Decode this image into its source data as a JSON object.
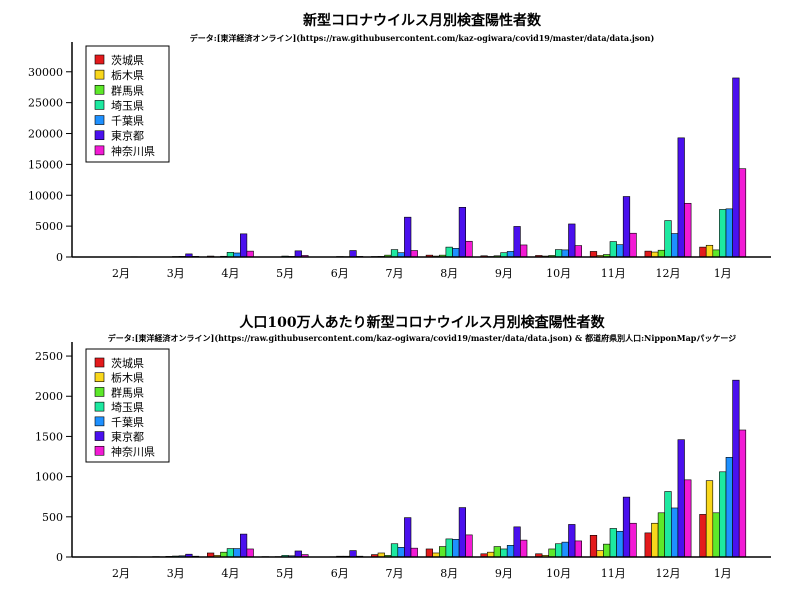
{
  "chart_data": [
    {
      "type": "bar",
      "title": "新型コロナウイルス月別検査陽性者数",
      "subtitle": "データ:[東洋経済オンライン](https://raw.githubusercontent.com/kaz-ogiwara/covid19/master/data/data.json)",
      "categories": [
        "2月",
        "3月",
        "4月",
        "5月",
        "6月",
        "7月",
        "8月",
        "9月",
        "10月",
        "11月",
        "12月",
        "1月"
      ],
      "ylim": [
        0,
        34500
      ],
      "yticks": [
        0,
        5000,
        10000,
        15000,
        20000,
        25000,
        30000
      ],
      "legend_position": "top-left",
      "grid": false,
      "series": [
        {
          "name": "茨城県",
          "color": "#e31a1c",
          "values": [
            0,
            10,
            150,
            20,
            5,
            80,
            300,
            200,
            250,
            900,
            950,
            1600
          ]
        },
        {
          "name": "栃木県",
          "color": "#f9d71c",
          "values": [
            0,
            5,
            40,
            5,
            3,
            100,
            150,
            80,
            150,
            250,
            800,
            1900
          ]
        },
        {
          "name": "群馬県",
          "color": "#5de82a",
          "values": [
            0,
            15,
            120,
            10,
            5,
            300,
            300,
            200,
            250,
            400,
            1100,
            1150
          ]
        },
        {
          "name": "埼玉県",
          "color": "#1de9a0",
          "values": [
            0,
            80,
            750,
            150,
            80,
            1200,
            1600,
            700,
            1200,
            2500,
            5900,
            7700
          ]
        },
        {
          "name": "千葉県",
          "color": "#1e90ff",
          "values": [
            0,
            100,
            650,
            100,
            60,
            700,
            1400,
            900,
            1150,
            2000,
            3800,
            7800
          ]
        },
        {
          "name": "東京都",
          "color": "#4a10ee",
          "values": [
            39,
            500,
            3750,
            1000,
            1050,
            6450,
            8050,
            4950,
            5350,
            9800,
            19300,
            29000
          ]
        },
        {
          "name": "神奈川県",
          "color": "#f21ad4",
          "values": [
            5,
            100,
            950,
            250,
            100,
            1050,
            2550,
            1950,
            1850,
            3850,
            8700,
            14300
          ]
        }
      ]
    },
    {
      "type": "bar",
      "title": "人口100万人あたり新型コロナウイルス月別検査陽性者数",
      "subtitle": "データ:[東洋経済オンライン](https://raw.githubusercontent.com/kaz-ogiwara/covid19/master/data/data.json) & 都道府県別人口:NipponMapパッケージ",
      "categories": [
        "2月",
        "3月",
        "4月",
        "5月",
        "6月",
        "7月",
        "8月",
        "9月",
        "10月",
        "11月",
        "12月",
        "1月"
      ],
      "ylim": [
        0,
        2650
      ],
      "yticks": [
        0,
        500,
        1000,
        1500,
        2000,
        2500
      ],
      "legend_position": "top-left",
      "grid": false,
      "series": [
        {
          "name": "茨城県",
          "color": "#e31a1c",
          "values": [
            0,
            5,
            50,
            5,
            2,
            30,
            100,
            40,
            40,
            270,
            300,
            530
          ]
        },
        {
          "name": "栃木県",
          "color": "#f9d71c",
          "values": [
            0,
            3,
            20,
            3,
            2,
            50,
            50,
            60,
            20,
            80,
            420,
            950
          ]
        },
        {
          "name": "群馬県",
          "color": "#5de82a",
          "values": [
            0,
            8,
            60,
            5,
            3,
            20,
            130,
            130,
            100,
            160,
            550,
            550
          ]
        },
        {
          "name": "埼玉県",
          "color": "#1de9a0",
          "values": [
            0,
            12,
            105,
            20,
            10,
            165,
            225,
            100,
            165,
            355,
            815,
            1060
          ]
        },
        {
          "name": "千葉県",
          "color": "#1e90ff",
          "values": [
            0,
            15,
            105,
            15,
            10,
            120,
            220,
            145,
            185,
            320,
            610,
            1240
          ]
        },
        {
          "name": "東京都",
          "color": "#4a10ee",
          "values": [
            3,
            35,
            285,
            75,
            80,
            490,
            615,
            375,
            405,
            745,
            1460,
            2200
          ]
        },
        {
          "name": "神奈川県",
          "color": "#f21ad4",
          "values": [
            1,
            10,
            100,
            30,
            10,
            110,
            275,
            210,
            200,
            420,
            960,
            1580
          ]
        }
      ]
    }
  ]
}
